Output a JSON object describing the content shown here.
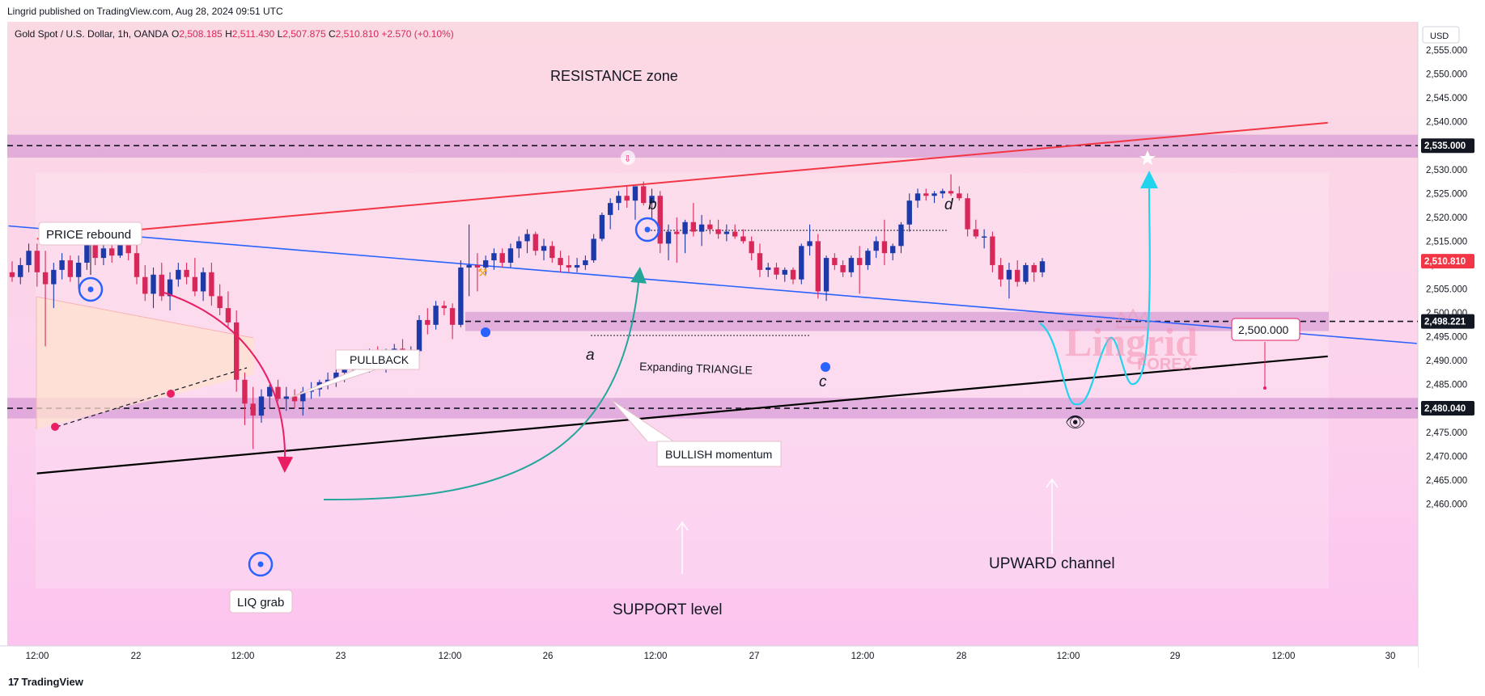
{
  "header": {
    "published": "Lingrid published on TradingView.com, Aug 28, 2024 09:51 UTC"
  },
  "footer": {
    "brand": "TradingView"
  },
  "colors": {
    "up": "#1c3aa9",
    "down": "#d8285a",
    "zone": "#c479c7",
    "resistance_line": "#f23645",
    "support_line": "#000000",
    "channel_line": "#2962ff",
    "forecast": "#22d3ee"
  },
  "chart_data": {
    "type": "candlestick",
    "symbol_line": "Gold Spot / U.S. Dollar, 1h, OANDA",
    "ohlc": {
      "O": "2,508.185",
      "H": "2,511.430",
      "L": "2,507.875",
      "C": "2,510.810",
      "change": "+2.570 (+0.10%)"
    },
    "currency": "USD",
    "ylim": [
      2457,
      2559
    ],
    "y_ticks": [
      "2,555.000",
      "2,550.000",
      "2,545.000",
      "2,540.000",
      "2,535.000",
      "2,530.000",
      "2,525.000",
      "2,520.000",
      "2,515.000",
      "2,510.000",
      "2,505.000",
      "2,500.000",
      "2,495.000",
      "2,490.000",
      "2,485.000",
      "2,480.000",
      "2,475.000",
      "2,470.000",
      "2,465.000",
      "2,460.000"
    ],
    "x_ticks": [
      "12:00",
      "22",
      "12:00",
      "23",
      "12:00",
      "26",
      "12:00",
      "27",
      "12:00",
      "28",
      "12:00",
      "29",
      "12:00",
      "30"
    ],
    "price_badges": [
      {
        "label": "2,535.000",
        "value": 2535,
        "style": "dark"
      },
      {
        "label": "2,510.810",
        "value": 2510.81,
        "style": "red"
      },
      {
        "label": "2,498.221",
        "value": 2498.221,
        "style": "dark"
      },
      {
        "label": "2,480.040",
        "value": 2480.04,
        "style": "dark"
      }
    ],
    "zones": [
      {
        "name": "resistance",
        "from": 2532.5,
        "to": 2537.3
      },
      {
        "name": "middle",
        "from": 2496.2,
        "to": 2500.2
      },
      {
        "name": "support",
        "from": 2477.9,
        "to": 2482.2
      }
    ],
    "candles": [
      [
        2508.5,
        2510.8,
        2506.5,
        2507.5
      ],
      [
        2507.5,
        2511.5,
        2506.0,
        2510.0
      ],
      [
        2510.0,
        2514.5,
        2508.5,
        2513.0
      ],
      [
        2513.0,
        2514.5,
        2505.5,
        2508.5
      ],
      [
        2508.5,
        2513.0,
        2493.0,
        2506.0
      ],
      [
        2506.0,
        2510.5,
        2501.0,
        2509.0
      ],
      [
        2509.0,
        2512.5,
        2507.0,
        2511.0
      ],
      [
        2511.0,
        2512.0,
        2506.5,
        2507.5
      ],
      [
        2507.5,
        2512.0,
        2505.0,
        2510.5
      ],
      [
        2510.5,
        2516.5,
        2509.0,
        2515.5
      ],
      [
        2515.5,
        2518.5,
        2510.0,
        2511.5
      ],
      [
        2511.5,
        2514.5,
        2510.0,
        2513.5
      ],
      [
        2513.5,
        2515.0,
        2510.5,
        2512.0
      ],
      [
        2512.0,
        2515.0,
        2511.5,
        2514.5
      ],
      [
        2514.5,
        2515.5,
        2511.0,
        2512.5
      ],
      [
        2512.5,
        2514.5,
        2506.0,
        2507.5
      ],
      [
        2507.5,
        2510.0,
        2502.5,
        2504.0
      ],
      [
        2504.0,
        2509.5,
        2501.0,
        2508.0
      ],
      [
        2508.0,
        2510.5,
        2502.5,
        2503.5
      ],
      [
        2503.5,
        2508.5,
        2500.5,
        2507.0
      ],
      [
        2507.0,
        2510.5,
        2505.5,
        2509.0
      ],
      [
        2509.0,
        2510.5,
        2506.0,
        2507.5
      ],
      [
        2507.5,
        2511.5,
        2503.5,
        2504.5
      ],
      [
        2504.5,
        2509.5,
        2502.5,
        2508.5
      ],
      [
        2508.5,
        2510.5,
        2501.5,
        2503.5
      ],
      [
        2503.5,
        2506.0,
        2499.5,
        2501.0
      ],
      [
        2501.0,
        2504.5,
        2497.0,
        2498.0
      ],
      [
        2498.0,
        2500.5,
        2483.5,
        2486.0
      ],
      [
        2486.0,
        2487.5,
        2476.5,
        2481.0
      ],
      [
        2481.0,
        2484.5,
        2471.5,
        2478.5
      ],
      [
        2478.5,
        2484.0,
        2477.0,
        2482.5
      ],
      [
        2482.5,
        2485.0,
        2480.0,
        2484.5
      ],
      [
        2484.5,
        2486.0,
        2481.5,
        2482.0
      ],
      [
        2482.0,
        2484.5,
        2479.5,
        2482.5
      ],
      [
        2482.5,
        2484.0,
        2480.0,
        2481.5
      ],
      [
        2481.5,
        2484.5,
        2478.5,
        2483.5
      ],
      [
        2483.5,
        2485.5,
        2482.0,
        2484.0
      ],
      [
        2484.0,
        2486.0,
        2482.5,
        2485.5
      ],
      [
        2485.5,
        2487.5,
        2484.0,
        2486.0
      ],
      [
        2486.0,
        2488.5,
        2484.5,
        2487.5
      ],
      [
        2487.5,
        2490.0,
        2485.5,
        2489.5
      ],
      [
        2489.5,
        2491.5,
        2487.0,
        2490.5
      ],
      [
        2490.5,
        2492.0,
        2488.0,
        2489.5
      ],
      [
        2489.5,
        2492.5,
        2487.5,
        2491.5
      ],
      [
        2491.5,
        2493.0,
        2488.5,
        2490.0
      ],
      [
        2490.0,
        2492.5,
        2487.5,
        2491.0
      ],
      [
        2491.0,
        2493.5,
        2489.0,
        2492.5
      ],
      [
        2492.5,
        2494.5,
        2489.5,
        2491.0
      ],
      [
        2491.0,
        2493.0,
        2489.5,
        2492.0
      ],
      [
        2492.0,
        2499.5,
        2491.0,
        2498.5
      ],
      [
        2498.5,
        2501.0,
        2495.5,
        2497.5
      ],
      [
        2497.5,
        2502.5,
        2496.5,
        2501.5
      ],
      [
        2501.5,
        2502.5,
        2499.5,
        2501.0
      ],
      [
        2501.0,
        2502.0,
        2494.5,
        2497.5
      ],
      [
        2497.5,
        2511.0,
        2497.0,
        2509.5
      ],
      [
        2509.5,
        2518.5,
        2503.5,
        2510.0
      ],
      [
        2510.0,
        2512.5,
        2504.5,
        2509.5
      ],
      [
        2509.5,
        2512.0,
        2508.0,
        2511.0
      ],
      [
        2511.0,
        2513.5,
        2509.0,
        2512.5
      ],
      [
        2512.5,
        2513.5,
        2509.5,
        2510.5
      ],
      [
        2510.5,
        2514.5,
        2509.5,
        2513.5
      ],
      [
        2513.5,
        2516.0,
        2511.5,
        2515.0
      ],
      [
        2515.0,
        2517.5,
        2512.5,
        2516.5
      ],
      [
        2516.5,
        2517.0,
        2512.0,
        2513.0
      ],
      [
        2513.0,
        2515.5,
        2511.0,
        2514.0
      ],
      [
        2514.0,
        2515.0,
        2510.5,
        2511.5
      ],
      [
        2511.5,
        2513.0,
        2508.5,
        2510.0
      ],
      [
        2510.0,
        2512.0,
        2508.5,
        2509.5
      ],
      [
        2509.5,
        2511.5,
        2508.5,
        2510.0
      ],
      [
        2510.0,
        2512.0,
        2509.0,
        2511.0
      ],
      [
        2511.0,
        2516.5,
        2510.5,
        2515.5
      ],
      [
        2515.5,
        2521.0,
        2515.0,
        2520.5
      ],
      [
        2520.5,
        2524.0,
        2517.5,
        2523.0
      ],
      [
        2523.0,
        2525.5,
        2521.5,
        2524.5
      ],
      [
        2524.5,
        2526.5,
        2522.0,
        2523.5
      ],
      [
        2523.5,
        2526.5,
        2519.5,
        2526.5
      ],
      [
        2526.5,
        2527.5,
        2522.5,
        2523.0
      ],
      [
        2523.0,
        2526.0,
        2519.5,
        2524.5
      ],
      [
        2524.5,
        2525.5,
        2512.5,
        2514.5
      ],
      [
        2514.5,
        2518.5,
        2511.0,
        2517.0
      ],
      [
        2517.0,
        2520.0,
        2510.5,
        2516.5
      ],
      [
        2516.5,
        2519.5,
        2512.5,
        2519.0
      ],
      [
        2519.0,
        2523.0,
        2516.0,
        2517.0
      ],
      [
        2517.0,
        2520.5,
        2514.0,
        2518.5
      ],
      [
        2518.5,
        2519.5,
        2516.5,
        2517.5
      ],
      [
        2517.5,
        2519.5,
        2515.5,
        2516.5
      ],
      [
        2516.5,
        2518.5,
        2515.0,
        2517.0
      ],
      [
        2517.0,
        2518.5,
        2515.5,
        2516.0
      ],
      [
        2516.0,
        2517.5,
        2514.5,
        2515.0
      ],
      [
        2515.0,
        2516.0,
        2511.0,
        2512.5
      ],
      [
        2512.5,
        2514.5,
        2507.5,
        2509.0
      ],
      [
        2509.0,
        2510.5,
        2507.5,
        2509.5
      ],
      [
        2509.5,
        2510.5,
        2507.0,
        2508.0
      ],
      [
        2508.0,
        2509.5,
        2506.5,
        2509.0
      ],
      [
        2509.0,
        2509.5,
        2506.0,
        2507.0
      ],
      [
        2507.0,
        2514.5,
        2506.0,
        2514.0
      ],
      [
        2514.0,
        2518.5,
        2512.0,
        2515.0
      ],
      [
        2515.0,
        2516.5,
        2503.0,
        2504.5
      ],
      [
        2504.5,
        2512.0,
        2502.5,
        2511.5
      ],
      [
        2511.5,
        2512.5,
        2509.0,
        2510.0
      ],
      [
        2510.0,
        2511.0,
        2507.5,
        2508.5
      ],
      [
        2508.5,
        2512.0,
        2507.5,
        2511.5
      ],
      [
        2511.5,
        2514.0,
        2504.0,
        2510.0
      ],
      [
        2510.0,
        2513.5,
        2509.0,
        2513.0
      ],
      [
        2513.0,
        2516.0,
        2511.5,
        2515.0
      ],
      [
        2515.0,
        2519.5,
        2510.0,
        2512.5
      ],
      [
        2512.5,
        2514.5,
        2511.0,
        2514.0
      ],
      [
        2514.0,
        2519.0,
        2512.5,
        2518.5
      ],
      [
        2518.5,
        2525.0,
        2517.0,
        2523.5
      ],
      [
        2523.5,
        2526.0,
        2522.0,
        2525.0
      ],
      [
        2525.0,
        2526.0,
        2523.5,
        2524.5
      ],
      [
        2524.5,
        2525.5,
        2523.0,
        2525.0
      ],
      [
        2525.0,
        2526.0,
        2524.0,
        2525.5
      ],
      [
        2525.5,
        2529.0,
        2524.5,
        2525.0
      ],
      [
        2525.0,
        2526.5,
        2523.5,
        2524.0
      ],
      [
        2524.0,
        2525.0,
        2516.0,
        2517.5
      ],
      [
        2517.5,
        2519.5,
        2515.5,
        2516.0
      ],
      [
        2516.0,
        2517.5,
        2513.5,
        2516.0
      ],
      [
        2516.0,
        2517.0,
        2508.5,
        2510.0
      ],
      [
        2510.0,
        2511.5,
        2505.5,
        2507.0
      ],
      [
        2507.0,
        2510.5,
        2503.0,
        2509.0
      ],
      [
        2509.0,
        2511.0,
        2505.5,
        2506.5
      ],
      [
        2506.5,
        2510.5,
        2506.0,
        2510.0
      ],
      [
        2510.0,
        2510.5,
        2506.5,
        2508.5
      ],
      [
        2508.5,
        2511.5,
        2507.5,
        2510.8
      ]
    ],
    "lines": [
      {
        "name": "resistance-trendline",
        "from": [
          39,
          2515.5
        ],
        "to": [
          1402,
          2539.8
        ]
      },
      {
        "name": "support-trendline",
        "from": [
          39,
          2466.4
        ],
        "to": [
          1402,
          2490.9
        ]
      },
      {
        "name": "channel-trendline",
        "from": [
          9,
          2518.2
        ],
        "to": [
          1496,
          2493.6
        ]
      }
    ],
    "annotations": [
      {
        "text": "RESISTANCE zone",
        "kind": "plain"
      },
      {
        "text": "PRICE rebound",
        "kind": "box"
      },
      {
        "text": "PULLBACK",
        "kind": "callout"
      },
      {
        "text": "BULLISH momentum",
        "kind": "callout"
      },
      {
        "text": "Expanding TRIANGLE",
        "kind": "plain"
      },
      {
        "text": "LIQ grab",
        "kind": "box"
      },
      {
        "text": "SUPPORT level",
        "kind": "plain"
      },
      {
        "text": "UPWARD channel",
        "kind": "plain"
      },
      {
        "text": "2,500.000",
        "kind": "box"
      }
    ],
    "wave_labels": [
      "a",
      "b",
      "c",
      "d"
    ],
    "watermark": {
      "name": "Lingrid",
      "sub": "FOREX"
    }
  }
}
